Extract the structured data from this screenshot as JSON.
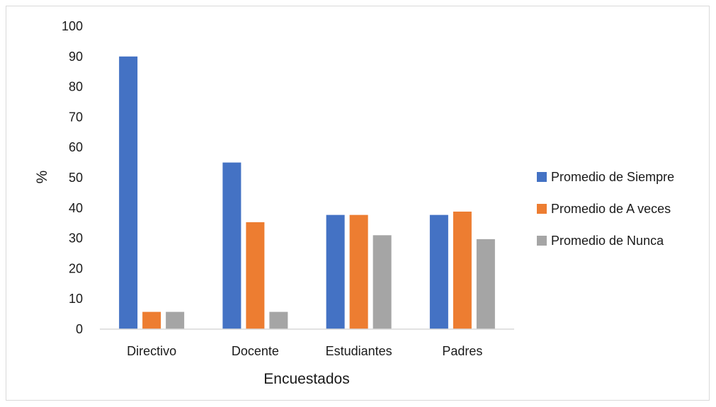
{
  "chart_data": {
    "type": "bar",
    "categories": [
      "Directivo",
      "Docente",
      "Estudiantes",
      "Padres"
    ],
    "series": [
      {
        "name": "Promedio de Siempre",
        "color": "#4472C4",
        "values": [
          90,
          55,
          37.7,
          37.7
        ]
      },
      {
        "name": "Promedio de A veces",
        "color": "#ED7D31",
        "values": [
          5.7,
          35.3,
          37.7,
          38.8
        ]
      },
      {
        "name": "Promedio de Nunca",
        "color": "#A5A5A5",
        "values": [
          5.7,
          5.7,
          31,
          29.7
        ]
      }
    ],
    "xlabel": "Encuestados",
    "ylabel": "%",
    "ylim": [
      0,
      100
    ],
    "yticks": [
      "0",
      "10",
      "20",
      "30",
      "40",
      "50",
      "60",
      "70",
      "80",
      "90",
      "100"
    ],
    "grid": false,
    "legend_position": "right"
  }
}
